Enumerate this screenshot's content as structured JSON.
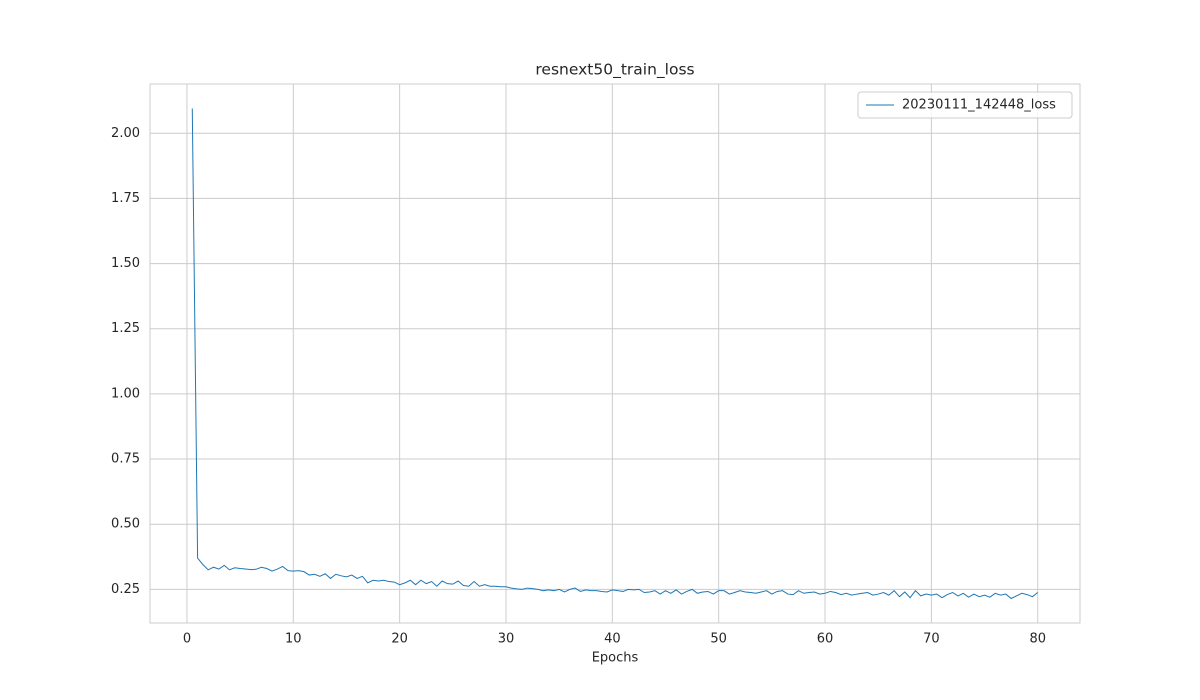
{
  "chart_data": {
    "type": "line",
    "title": "resnext50_train_loss",
    "x_label": "Epochs",
    "x": [
      0.5,
      1,
      1.5,
      2,
      2.5,
      3,
      3.5,
      4,
      4.5,
      5,
      5.5,
      6,
      6.5,
      7,
      7.5,
      8,
      8.5,
      9,
      9.5,
      10,
      10.5,
      11,
      11.5,
      12,
      12.5,
      13,
      13.5,
      14,
      14.5,
      15,
      15.5,
      16,
      16.5,
      17,
      17.5,
      18,
      18.5,
      19,
      19.5,
      20,
      20.5,
      21,
      21.5,
      22,
      22.5,
      23,
      23.5,
      24,
      24.5,
      25,
      25.5,
      26,
      26.5,
      27,
      27.5,
      28,
      28.5,
      29,
      29.5,
      30,
      30.5,
      31,
      31.5,
      32,
      32.5,
      33,
      33.5,
      34,
      34.5,
      35,
      35.5,
      36,
      36.5,
      37,
      37.5,
      38,
      38.5,
      39,
      39.5,
      40,
      40.5,
      41,
      41.5,
      42,
      42.5,
      43,
      43.5,
      44,
      44.5,
      45,
      45.5,
      46,
      46.5,
      47,
      47.5,
      48,
      48.5,
      49,
      49.5,
      50,
      50.5,
      51,
      51.5,
      52,
      52.5,
      53,
      53.5,
      54,
      54.5,
      55,
      55.5,
      56,
      56.5,
      57,
      57.5,
      58,
      58.5,
      59,
      59.5,
      60,
      60.5,
      61,
      61.5,
      62,
      62.5,
      63,
      63.5,
      64,
      64.5,
      65,
      65.5,
      66,
      66.5,
      67,
      67.5,
      68,
      68.5,
      69,
      69.5,
      70,
      70.5,
      71,
      71.5,
      72,
      72.5,
      73,
      73.5,
      74,
      74.5,
      75,
      75.5,
      76,
      76.5,
      77,
      77.5,
      78,
      78.5,
      79,
      79.5,
      80
    ],
    "series": [
      {
        "name": "20230111_142448_loss",
        "color": "#1f77b4",
        "values": [
          2.095,
          0.37,
          0.345,
          0.325,
          0.335,
          0.328,
          0.342,
          0.325,
          0.333,
          0.33,
          0.328,
          0.326,
          0.327,
          0.335,
          0.33,
          0.32,
          0.328,
          0.338,
          0.322,
          0.32,
          0.322,
          0.318,
          0.305,
          0.308,
          0.3,
          0.31,
          0.292,
          0.308,
          0.302,
          0.298,
          0.305,
          0.292,
          0.3,
          0.275,
          0.285,
          0.282,
          0.285,
          0.28,
          0.278,
          0.268,
          0.275,
          0.285,
          0.268,
          0.285,
          0.272,
          0.28,
          0.262,
          0.282,
          0.272,
          0.27,
          0.282,
          0.265,
          0.262,
          0.28,
          0.262,
          0.268,
          0.262,
          0.262,
          0.26,
          0.26,
          0.255,
          0.252,
          0.25,
          0.255,
          0.253,
          0.25,
          0.245,
          0.248,
          0.245,
          0.25,
          0.24,
          0.25,
          0.255,
          0.242,
          0.248,
          0.245,
          0.245,
          0.242,
          0.24,
          0.248,
          0.245,
          0.242,
          0.25,
          0.248,
          0.25,
          0.238,
          0.24,
          0.245,
          0.232,
          0.245,
          0.235,
          0.248,
          0.232,
          0.242,
          0.25,
          0.235,
          0.24,
          0.242,
          0.232,
          0.245,
          0.245,
          0.232,
          0.238,
          0.245,
          0.24,
          0.238,
          0.235,
          0.24,
          0.245,
          0.232,
          0.242,
          0.245,
          0.232,
          0.23,
          0.245,
          0.235,
          0.238,
          0.24,
          0.232,
          0.235,
          0.242,
          0.238,
          0.23,
          0.235,
          0.228,
          0.232,
          0.235,
          0.238,
          0.228,
          0.232,
          0.238,
          0.228,
          0.245,
          0.222,
          0.24,
          0.218,
          0.245,
          0.225,
          0.232,
          0.228,
          0.232,
          0.218,
          0.23,
          0.238,
          0.225,
          0.235,
          0.22,
          0.232,
          0.222,
          0.228,
          0.22,
          0.235,
          0.228,
          0.232,
          0.215,
          0.225,
          0.235,
          0.23,
          0.222,
          0.238
        ]
      }
    ],
    "xlim": [
      -3.475,
      83.975
    ],
    "xticks": [
      0,
      10,
      20,
      30,
      40,
      50,
      60,
      70,
      80
    ],
    "ylim": [
      0.121,
      2.189
    ],
    "yticks": [
      0.25,
      {
        "value": 0.5,
        "label": "0.50"
      },
      0.75,
      {
        "value": 1,
        "label": "1.00"
      },
      1.25,
      {
        "value": 1.5,
        "label": "1.50"
      },
      1.75,
      {
        "value": 2,
        "label": "2.00"
      }
    ],
    "grid": true,
    "legend": "upper right"
  }
}
